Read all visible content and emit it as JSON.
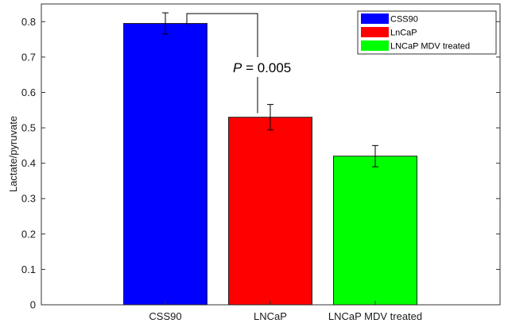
{
  "chart_data": {
    "type": "bar",
    "categories": [
      "CSS90",
      "LNCaP",
      "LNCaP MDV treated"
    ],
    "values": [
      0.795,
      0.53,
      0.42
    ],
    "errors": [
      0.03,
      0.036,
      0.03
    ],
    "colors": [
      "#0000ff",
      "#ff0000",
      "#00ff00"
    ],
    "xlabel": "",
    "ylabel": "Lactate/pyruvate",
    "ylim": [
      0,
      0.85
    ],
    "yticks": [
      "0",
      "0.1",
      "0.2",
      "0.3",
      "0.4",
      "0.5",
      "0.6",
      "0.7",
      "0.8"
    ],
    "legend": {
      "position": "top-right",
      "entries": [
        "CSS90",
        "LnCaP",
        "LNCaP MDV treated"
      ]
    },
    "annotation": {
      "italic": "P",
      "text": " = 0.005",
      "between": [
        "CSS90",
        "LNCaP"
      ]
    },
    "grid": false
  }
}
